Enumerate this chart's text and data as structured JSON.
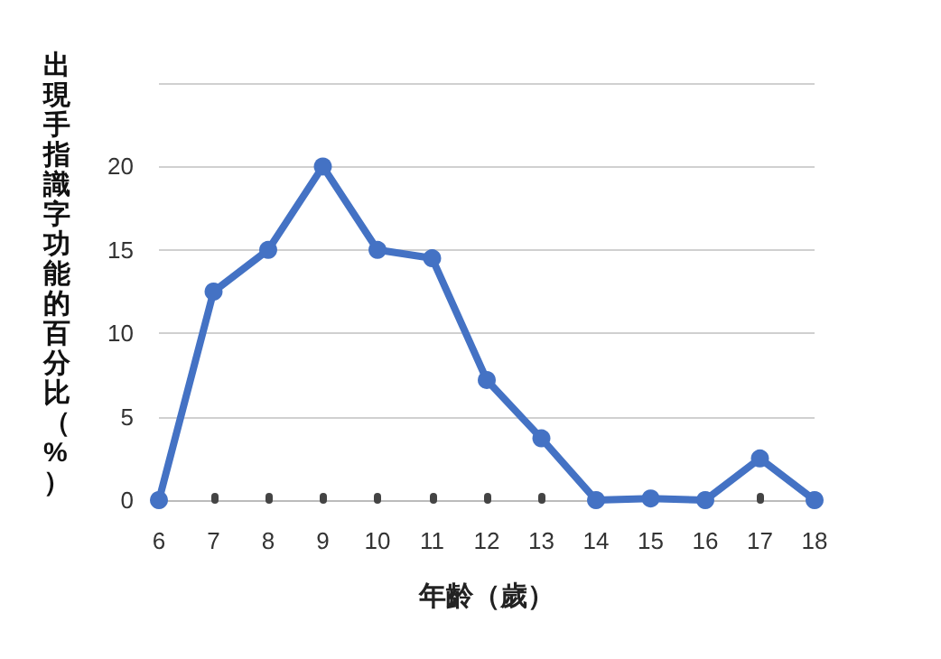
{
  "chart_data": {
    "type": "line",
    "xlabel": "年齡（歲）",
    "ylabel": "出現手指識字功能的百分比（%）",
    "categories": [
      "6",
      "7",
      "8",
      "9",
      "10",
      "11",
      "12",
      "13",
      "14",
      "15",
      "16",
      "17",
      "18"
    ],
    "series": [
      {
        "color": "#4472c4",
        "values": [
          0,
          12.5,
          15,
          20,
          15,
          14.5,
          7.2,
          3.7,
          0,
          0.1,
          0,
          2.5,
          0
        ]
      }
    ],
    "ylim": [
      0,
      25
    ],
    "yticks": [
      0,
      5,
      10,
      15,
      20,
      {
        "value": 25,
        "label": null
      }
    ],
    "grid": "y",
    "marker": "circle",
    "line_style": "solid"
  }
}
